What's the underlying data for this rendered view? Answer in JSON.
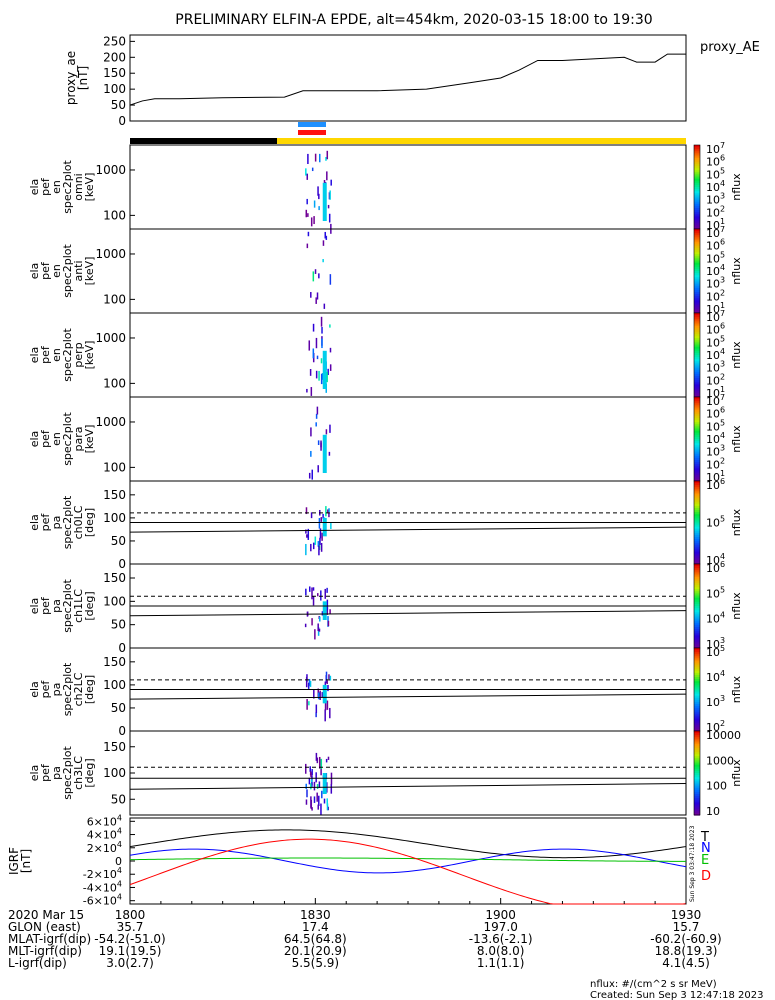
{
  "title": "PRELIMINARY ELFIN-A EPDE, alt=454km, 2020-03-15 18:00 to 19:30",
  "time_labels": [
    "1800",
    "1830",
    "1900",
    "1930"
  ],
  "ephem_rows": [
    {
      "label": "2020 Mar 15",
      "values": [
        "",
        "",
        "",
        ""
      ]
    },
    {
      "label": "GLON (east)",
      "values": [
        "35.7",
        "17.4",
        "197.0",
        "15.7"
      ]
    },
    {
      "label": "MLAT-igrf(dip)",
      "values": [
        "-54.2(-51.0)",
        "64.5(64.8)",
        "-13.6(-2.1)",
        "-60.2(-60.9)"
      ]
    },
    {
      "label": "MLT-igrf(dip)",
      "values": [
        "19.1(19.5)",
        "20.1(20.9)",
        "8.0(8.0)",
        "18.8(19.3)"
      ]
    },
    {
      "label": "L-igrf(dip)",
      "values": [
        "3.0(2.7)",
        "5.5(5.9)",
        "1.1(1.1)",
        "4.1(4.5)"
      ]
    }
  ],
  "footer": {
    "units": "nflux: #/(cm^2 s sr MeV)",
    "created": "Created: Sun Sep  3 12:47:18 2023",
    "stamp": "Sun Sep  3 03:47:18 2023"
  },
  "colors": {
    "total": "#000000",
    "north": "#0000ff",
    "east": "#00c000",
    "down": "#ff0000",
    "fgm_bar": "#ffd700",
    "sci_blue": "#1e90ff",
    "sci_red": "#ff1010"
  },
  "chart_data": [
    {
      "type": "line",
      "name": "proxy_ae",
      "ylabel_lines": [
        "proxy_ae",
        "[nT]"
      ],
      "legend": "proxy_AE",
      "yticks": [
        "0",
        "50",
        "100",
        "150",
        "200",
        "250"
      ],
      "ylim": [
        0,
        270
      ],
      "xlim_minutes": [
        0,
        90
      ],
      "x": [
        0,
        2,
        4,
        8,
        15,
        25,
        28,
        35,
        40,
        48,
        55,
        60,
        63,
        66,
        70,
        75,
        80,
        82,
        85,
        87,
        88,
        90
      ],
      "y": [
        50,
        63,
        70,
        70,
        73,
        75,
        95,
        95,
        95,
        100,
        120,
        135,
        160,
        190,
        190,
        195,
        200,
        185,
        185,
        210,
        210,
        210
      ]
    },
    {
      "type": "heatmap",
      "name": "ela_pef_en_spec2plot_omni",
      "ylabel_lines": [
        "ela",
        "pef",
        "en",
        "spec2plot",
        "omni",
        "[keV]"
      ],
      "yticks": [
        "100",
        "1000"
      ],
      "ylim_log10": [
        1.7,
        3.55
      ],
      "colorbar": {
        "label": "nflux",
        "ticks": [
          "10",
          "10",
          "10",
          "10",
          "10",
          "10",
          "10"
        ],
        "exps": [
          "1",
          "2",
          "3",
          "4",
          "5",
          "6",
          "7"
        ]
      }
    },
    {
      "type": "heatmap",
      "name": "ela_pef_en_spec2plot_anti",
      "ylabel_lines": [
        "ela",
        "pef",
        "en",
        "spec2plot",
        "anti",
        "[keV]"
      ],
      "yticks": [
        "100",
        "1000"
      ],
      "ylim_log10": [
        1.7,
        3.55
      ],
      "colorbar": {
        "label": "nflux",
        "ticks": [
          "10",
          "10",
          "10",
          "10",
          "10",
          "10",
          "10"
        ],
        "exps": [
          "1",
          "2",
          "3",
          "4",
          "5",
          "6",
          "7"
        ]
      }
    },
    {
      "type": "heatmap",
      "name": "ela_pef_en_spec2plot_perp",
      "ylabel_lines": [
        "ela",
        "pef",
        "en",
        "spec2plot",
        "perp",
        "[keV]"
      ],
      "yticks": [
        "100",
        "1000"
      ],
      "ylim_log10": [
        1.7,
        3.55
      ],
      "colorbar": {
        "label": "nflux",
        "ticks": [
          "10",
          "10",
          "10",
          "10",
          "10",
          "10",
          "10"
        ],
        "exps": [
          "1",
          "2",
          "3",
          "4",
          "5",
          "6",
          "7"
        ]
      }
    },
    {
      "type": "heatmap",
      "name": "ela_pef_en_spec2plot_para",
      "ylabel_lines": [
        "ela",
        "pef",
        "en",
        "spec2plot",
        "para",
        "[keV]"
      ],
      "yticks": [
        "100",
        "1000"
      ],
      "ylim_log10": [
        1.7,
        3.55
      ],
      "colorbar": {
        "label": "nflux",
        "ticks": [
          "10",
          "10",
          "10",
          "10",
          "10",
          "10",
          "10"
        ],
        "exps": [
          "1",
          "2",
          "3",
          "4",
          "5",
          "6",
          "7"
        ]
      }
    },
    {
      "type": "heatmap",
      "name": "ela_pef_pa_spec2plot_ch0LC",
      "ylabel_lines": [
        "ela",
        "pef",
        "pa",
        "spec2plot",
        "ch0LC",
        "[deg]"
      ],
      "yticks": [
        "0",
        "50",
        "100",
        "150"
      ],
      "ylim": [
        0,
        180
      ],
      "colorbar": {
        "label": "nflux",
        "ticks": [
          "10",
          "10",
          "10"
        ],
        "exps": [
          "4",
          "5",
          "6"
        ]
      }
    },
    {
      "type": "heatmap",
      "name": "ela_pef_pa_spec2plot_ch1LC",
      "ylabel_lines": [
        "ela",
        "pef",
        "pa",
        "spec2plot",
        "ch1LC",
        "[deg]"
      ],
      "yticks": [
        "0",
        "50",
        "100",
        "150"
      ],
      "ylim": [
        0,
        180
      ],
      "colorbar": {
        "label": "nflux",
        "ticks": [
          "10",
          "10",
          "10",
          "10"
        ],
        "exps": [
          "3",
          "4",
          "5",
          "6"
        ]
      }
    },
    {
      "type": "heatmap",
      "name": "ela_pef_pa_spec2plot_ch2LC",
      "ylabel_lines": [
        "ela",
        "pef",
        "pa",
        "spec2plot",
        "ch2LC",
        "[deg]"
      ],
      "yticks": [
        "0",
        "50",
        "100",
        "150"
      ],
      "ylim": [
        0,
        180
      ],
      "colorbar": {
        "label": "nflux",
        "ticks": [
          "10",
          "10",
          "10",
          "10"
        ],
        "exps": [
          "2",
          "3",
          "4",
          "5"
        ]
      }
    },
    {
      "type": "heatmap",
      "name": "ela_pef_pa_spec2plot_ch3LC",
      "ylabel_lines": [
        "ela",
        "pef",
        "pa",
        "spec2plot",
        "ch3LC",
        "[deg]"
      ],
      "yticks": [
        "50",
        "100",
        "150"
      ],
      "ylim": [
        20,
        180
      ],
      "colorbar": {
        "label": "nflux",
        "ticks": [
          "10",
          "100",
          "1000",
          "10000"
        ],
        "exps": [
          "",
          "",
          "",
          ""
        ]
      }
    },
    {
      "type": "line",
      "name": "igrf",
      "ylabel_lines": [
        "IGRF",
        "[nT]"
      ],
      "yticks": [
        "-6×10",
        "-4×10",
        "-2×10",
        "0",
        "2×10",
        "4×10",
        "6×10"
      ],
      "ytick_exp": "4",
      "ylim": [
        -65000,
        65000
      ],
      "xlim_minutes": [
        0,
        90
      ],
      "legend": [
        "T",
        "N",
        "E",
        "D"
      ]
    }
  ]
}
